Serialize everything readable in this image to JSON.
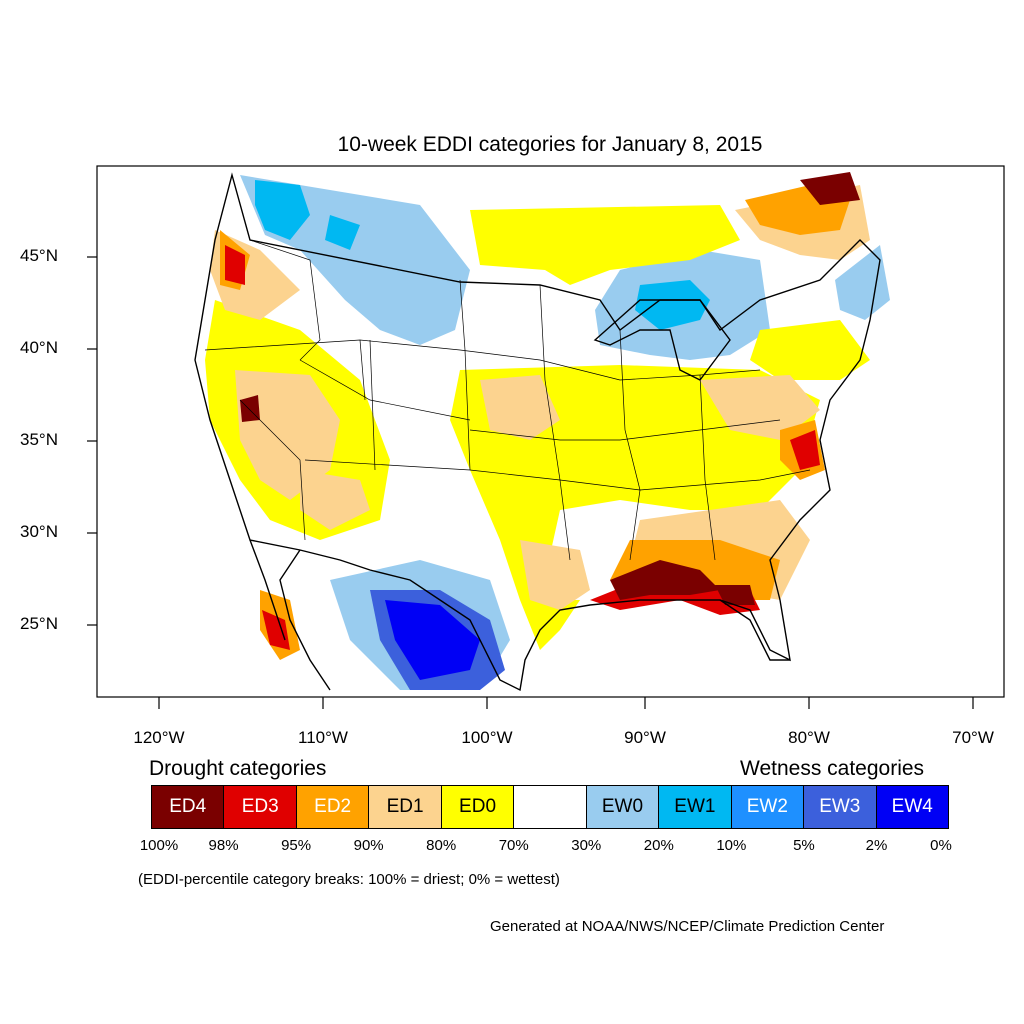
{
  "title": "10-week EDDI categories for January 8, 2015",
  "colors": {
    "ED4": "#7a0000",
    "ED3": "#e00000",
    "ED2": "#ffa200",
    "ED1": "#fcd38f",
    "ED0": "#ffff00",
    "neutral": "#ffffff",
    "EW0": "#99ccef",
    "EW1": "#00b8f2",
    "EW2": "#1e90ff",
    "EW3": "#3c60dc",
    "EW4": "#0000f5"
  },
  "axes": {
    "lat_ticks": [
      "45°N",
      "40°N",
      "35°N",
      "30°N",
      "25°N"
    ],
    "lon_ticks": [
      "120°W",
      "110°W",
      "100°W",
      "90°W",
      "80°W",
      "70°W"
    ]
  },
  "legend": {
    "drought_heading": "Drought categories",
    "wetness_heading": "Wetness categories",
    "categories": [
      {
        "label": "ED4",
        "text_color": "#ffffff"
      },
      {
        "label": "ED3",
        "text_color": "#ffffff"
      },
      {
        "label": "ED2",
        "text_color": "#ffffff"
      },
      {
        "label": "ED1",
        "text_color": "#000000"
      },
      {
        "label": "ED0",
        "text_color": "#000000"
      },
      {
        "label": "",
        "text_color": "#000000"
      },
      {
        "label": "EW0",
        "text_color": "#000000"
      },
      {
        "label": "EW1",
        "text_color": "#000000"
      },
      {
        "label": "EW2",
        "text_color": "#ffffff"
      },
      {
        "label": "EW3",
        "text_color": "#ffffff"
      },
      {
        "label": "EW4",
        "text_color": "#ffffff"
      }
    ],
    "percentiles": [
      "100%",
      "98%",
      "95%",
      "90%",
      "80%",
      "70%",
      "30%",
      "20%",
      "10%",
      "5%",
      "2%",
      "0%"
    ]
  },
  "note": "(EDDI-percentile category breaks: 100% = driest; 0% = wettest)",
  "credit": "Generated at NOAA/NWS/NCEP/Climate Prediction Center"
}
